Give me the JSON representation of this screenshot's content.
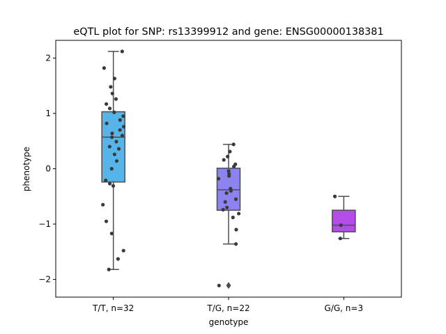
{
  "chart_data": {
    "type": "box",
    "title": "eQTL plot for SNP: rs13399912 and gene: ENSG00000138381",
    "xlabel": "genotype",
    "ylabel": "phenotype",
    "ylim": [
      -2.32,
      2.32
    ],
    "yticks": [
      -2,
      -1,
      0,
      1,
      2
    ],
    "ytick_labels": [
      "−2",
      "−1",
      "0",
      "1",
      "2"
    ],
    "grid": false,
    "categories": [
      "T/T, n=32",
      "T/G, n=22",
      "G/G, n=3"
    ],
    "boxes": [
      {
        "category": "T/T, n=32",
        "color": "#56b4e9",
        "q1": -0.24,
        "median": 0.57,
        "q3": 1.03,
        "whisker_low": -1.82,
        "whisker_high": 2.12,
        "outliers": [],
        "points": [
          2.12,
          1.82,
          1.63,
          1.48,
          1.36,
          1.26,
          1.17,
          1.09,
          1.02,
          0.95,
          0.88,
          0.82,
          0.76,
          0.7,
          0.64,
          0.6,
          0.57,
          0.49,
          0.4,
          0.36,
          0.26,
          0.14,
          0.0,
          -0.21,
          -0.27,
          -0.31,
          -0.65,
          -0.95,
          -1.17,
          -1.48,
          -1.63,
          -1.82
        ]
      },
      {
        "category": "T/G, n=22",
        "color": "#8c82f0",
        "q1": -0.75,
        "median": -0.38,
        "q3": 0.01,
        "whisker_low": -1.36,
        "whisker_high": 0.44,
        "outliers": [
          -2.11
        ],
        "points": [
          0.44,
          0.31,
          0.22,
          0.16,
          0.08,
          0.04,
          -0.04,
          -0.09,
          -0.13,
          -0.18,
          -0.36,
          -0.4,
          -0.44,
          -0.55,
          -0.6,
          -0.7,
          -0.74,
          -0.81,
          -0.88,
          -1.1,
          -1.36,
          -2.11
        ]
      },
      {
        "category": "G/G, n=3",
        "color": "#b44ce8",
        "q1": -1.14,
        "median": -1.02,
        "q3": -0.75,
        "whisker_low": -1.26,
        "whisker_high": -0.5,
        "outliers": [],
        "points": [
          -0.5,
          -1.02,
          -1.26
        ]
      }
    ]
  }
}
